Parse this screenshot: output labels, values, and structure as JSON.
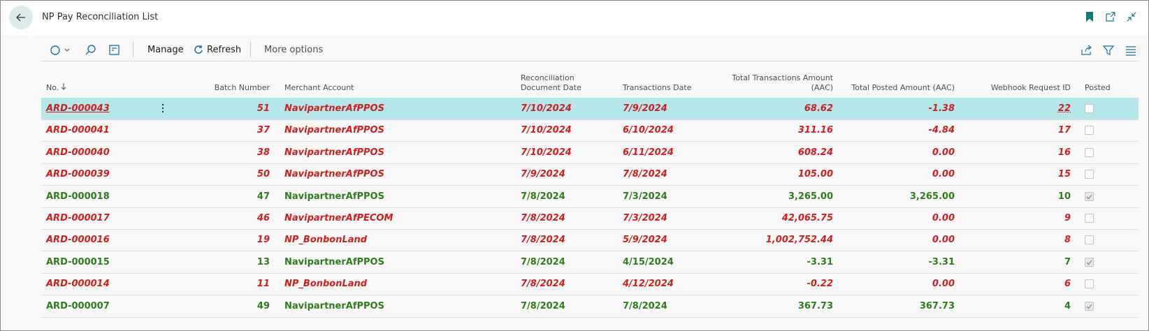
{
  "header": {
    "title": "NP Pay Reconciliation List"
  },
  "toolbar": {
    "actions": [
      "Manage",
      "Refresh",
      "More options"
    ]
  },
  "table": {
    "columns": [
      "No.",
      "Batch Number",
      "Merchant Account",
      "Reconciliation Document Date",
      "Transactions Date",
      "Total Transactions Amount (AAC)",
      "Total Posted Amount (AAC)",
      "Webhook Request ID",
      "Posted"
    ],
    "selected_row": 0,
    "rows": [
      {
        "cells": [
          "ARD-000043",
          "51",
          "NavipartnerAfPPOS",
          "7/10/2024",
          "7/9/2024",
          "68.62",
          "-1.38",
          "22"
        ],
        "posted": false
      },
      {
        "cells": [
          "ARD-000041",
          "37",
          "NavipartnerAfPPOS",
          "7/10/2024",
          "6/10/2024",
          "311.16",
          "-4.84",
          "17"
        ],
        "posted": false
      },
      {
        "cells": [
          "ARD-000040",
          "38",
          "NavipartnerAfPPOS",
          "7/10/2024",
          "6/11/2024",
          "608.24",
          "0.00",
          "16"
        ],
        "posted": false
      },
      {
        "cells": [
          "ARD-000039",
          "50",
          "NavipartnerAfPPOS",
          "7/9/2024",
          "7/8/2024",
          "105.00",
          "0.00",
          "15"
        ],
        "posted": false
      },
      {
        "cells": [
          "ARD-000018",
          "47",
          "NavipartnerAfPPOS",
          "7/8/2024",
          "7/3/2024",
          "3,265.00",
          "3,265.00",
          "10"
        ],
        "posted": true
      },
      {
        "cells": [
          "ARD-000017",
          "46",
          "NavipartnerAfPECOM",
          "7/8/2024",
          "7/3/2024",
          "42,065.75",
          "0.00",
          "9"
        ],
        "posted": false
      },
      {
        "cells": [
          "ARD-000016",
          "19",
          "NP_BonbonLand",
          "7/8/2024",
          "5/9/2024",
          "1,002,752.44",
          "0.00",
          "8"
        ],
        "posted": false
      },
      {
        "cells": [
          "ARD-000015",
          "13",
          "NavipartnerAfPPOS",
          "7/8/2024",
          "4/15/2024",
          "-3.31",
          "-3.31",
          "7"
        ],
        "posted": true
      },
      {
        "cells": [
          "ARD-000014",
          "11",
          "NP_BonbonLand",
          "7/8/2024",
          "4/12/2024",
          "-0.22",
          "0.00",
          "6"
        ],
        "posted": false
      },
      {
        "cells": [
          "ARD-000007",
          "49",
          "NavipartnerAfPPOS",
          "7/8/2024",
          "7/8/2024",
          "367.73",
          "367.73",
          "4"
        ],
        "posted": true
      }
    ]
  }
}
